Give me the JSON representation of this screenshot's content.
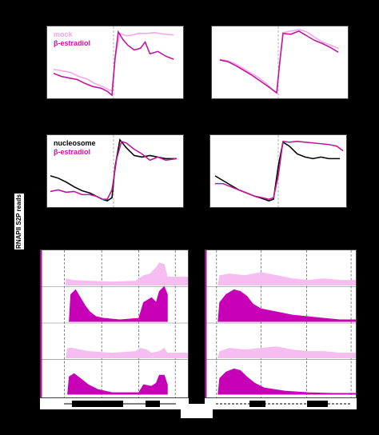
{
  "legends": {
    "panel_a": [
      "mock",
      "β-estradiol"
    ],
    "panel_c": [
      "nucleosome",
      "β-estradiol"
    ]
  },
  "tracks": {
    "ylabel": "RNAPII S2P reads"
  },
  "colors": {
    "mock": "#f4a6e8",
    "estradiol": "#c2159b",
    "nucleosome": "#000000",
    "track_light": "#f6bdf0",
    "track_dark": "#c700b8"
  }
}
